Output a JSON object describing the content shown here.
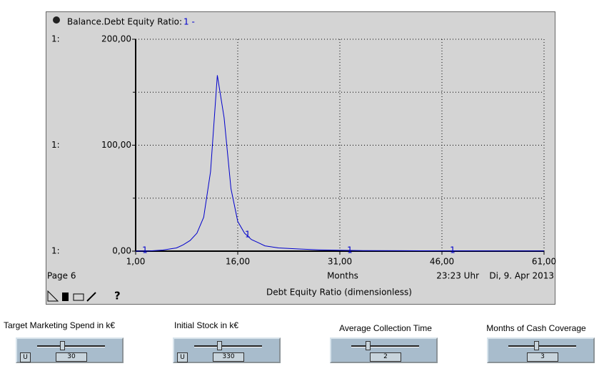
{
  "chart_data": {
    "type": "line",
    "title": "Balance.Debt Equity Ratio:",
    "legend_label": "1 -",
    "axis_series_label": "1:",
    "series_marker": "1",
    "xlabel": "Months",
    "caption": "Debt Equity Ratio (dimensionless)",
    "page": "Page 6",
    "time": "23:23 Uhr",
    "date": "Di, 9. Apr 2013",
    "help": "?",
    "x": [
      1,
      3,
      5,
      7,
      8,
      9,
      10,
      11,
      12,
      13,
      14,
      15,
      16,
      17,
      18,
      19,
      20,
      22,
      25,
      28,
      31,
      35,
      40,
      46,
      50,
      55,
      61
    ],
    "series": [
      {
        "color": "#0000cc",
        "values": [
          0,
          0.2,
          1,
          3,
          6,
          10,
          17,
          32,
          75,
          166,
          126,
          59,
          28,
          17,
          11,
          8,
          5,
          3,
          2,
          1.2,
          0.8,
          0.5,
          0.4,
          0.3,
          0.3,
          0.2,
          0.2
        ]
      }
    ],
    "xlim": [
      1,
      61
    ],
    "xticks": [
      {
        "value": 1,
        "label": "1,00"
      },
      {
        "value": 16,
        "label": "16,00"
      },
      {
        "value": 31,
        "label": "31,00"
      },
      {
        "value": 46,
        "label": "46,00"
      },
      {
        "value": 61,
        "label": "61,00"
      }
    ],
    "ylim": [
      0,
      200
    ],
    "yticks": [
      {
        "value": 0,
        "label": "0,00"
      },
      {
        "value": 100,
        "label": "100,00"
      },
      {
        "value": 200,
        "label": "200,00"
      }
    ],
    "yticks_minor": [
      50,
      150
    ],
    "grid": true
  },
  "sliders": [
    {
      "label": "Target Marketing Spend in k€",
      "value": 30,
      "button": "U"
    },
    {
      "label": "Initial Stock in k€",
      "value": 330,
      "button": "U"
    },
    {
      "label": "Average Collection Time",
      "value": 2
    },
    {
      "label": "Months of Cash Coverage",
      "value": 3
    }
  ]
}
